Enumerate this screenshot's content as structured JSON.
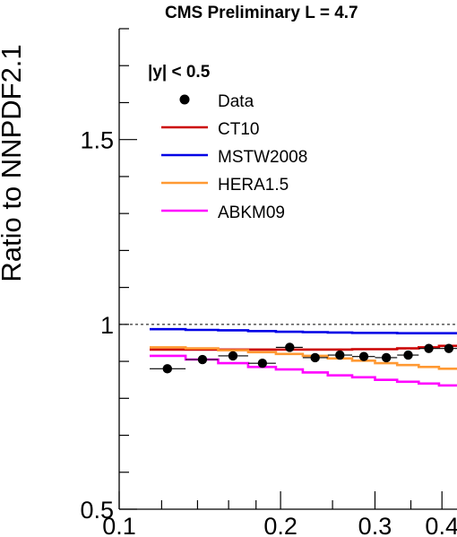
{
  "chart_data": {
    "type": "line",
    "title": "CMS Preliminary L = 4.7",
    "xlabel": "",
    "ylabel": "Ratio to NNPDF2.1",
    "x_scale": "log",
    "xlim": [
      0.1,
      0.43
    ],
    "ylim": [
      0.5,
      1.8
    ],
    "x_ticks": [
      {
        "value": 0.1,
        "label": "0.1"
      },
      {
        "value": 0.2,
        "label": "0.2"
      },
      {
        "value": 0.3,
        "label": "0.3"
      },
      {
        "value": 0.4,
        "label": "0.4"
      }
    ],
    "y_ticks": [
      {
        "value": 0.5,
        "label": "0.5"
      },
      {
        "value": 1.0,
        "label": "1"
      },
      {
        "value": 1.5,
        "label": "1.5"
      }
    ],
    "reference_line": 1.0,
    "legend_header": "|y| < 0.5",
    "legend_placement": "top-left",
    "bin_edges": [
      0.114,
      0.133,
      0.153,
      0.174,
      0.196,
      0.22,
      0.245,
      0.272,
      0.3,
      0.33,
      0.362,
      0.395,
      0.43
    ],
    "series": [
      {
        "name": "Data",
        "kind": "points",
        "color": "#000000",
        "x": [
          0.123,
          0.143,
          0.163,
          0.185,
          0.208,
          0.232,
          0.258,
          0.286,
          0.315,
          0.346,
          0.378,
          0.412
        ],
        "values": [
          0.88,
          0.905,
          0.915,
          0.895,
          0.938,
          0.91,
          0.917,
          0.913,
          0.91,
          0.917,
          0.935,
          0.935
        ],
        "xerr_low": [
          0.009,
          0.01,
          0.01,
          0.011,
          0.012,
          0.012,
          0.013,
          0.014,
          0.015,
          0.016,
          0.016,
          0.017
        ],
        "xerr_high": [
          0.01,
          0.01,
          0.011,
          0.011,
          0.012,
          0.013,
          0.014,
          0.014,
          0.015,
          0.016,
          0.017,
          0.018
        ]
      },
      {
        "name": "CT10",
        "kind": "step",
        "color": "#cc0000",
        "values": [
          0.932,
          0.932,
          0.932,
          0.932,
          0.932,
          0.932,
          0.932,
          0.933,
          0.933,
          0.935,
          0.938,
          0.942
        ]
      },
      {
        "name": "MSTW2008",
        "kind": "step",
        "color": "#0000e6",
        "values": [
          0.987,
          0.985,
          0.984,
          0.982,
          0.98,
          0.979,
          0.978,
          0.977,
          0.977,
          0.976,
          0.976,
          0.976
        ]
      },
      {
        "name": "HERA1.5",
        "kind": "step",
        "color": "#ff9933",
        "values": [
          0.938,
          0.935,
          0.93,
          0.925,
          0.92,
          0.915,
          0.908,
          0.902,
          0.895,
          0.89,
          0.885,
          0.88
        ]
      },
      {
        "name": "ABKM09",
        "kind": "step",
        "color": "#ff00ff",
        "values": [
          0.915,
          0.905,
          0.895,
          0.885,
          0.878,
          0.87,
          0.862,
          0.857,
          0.85,
          0.845,
          0.84,
          0.835
        ]
      }
    ]
  }
}
